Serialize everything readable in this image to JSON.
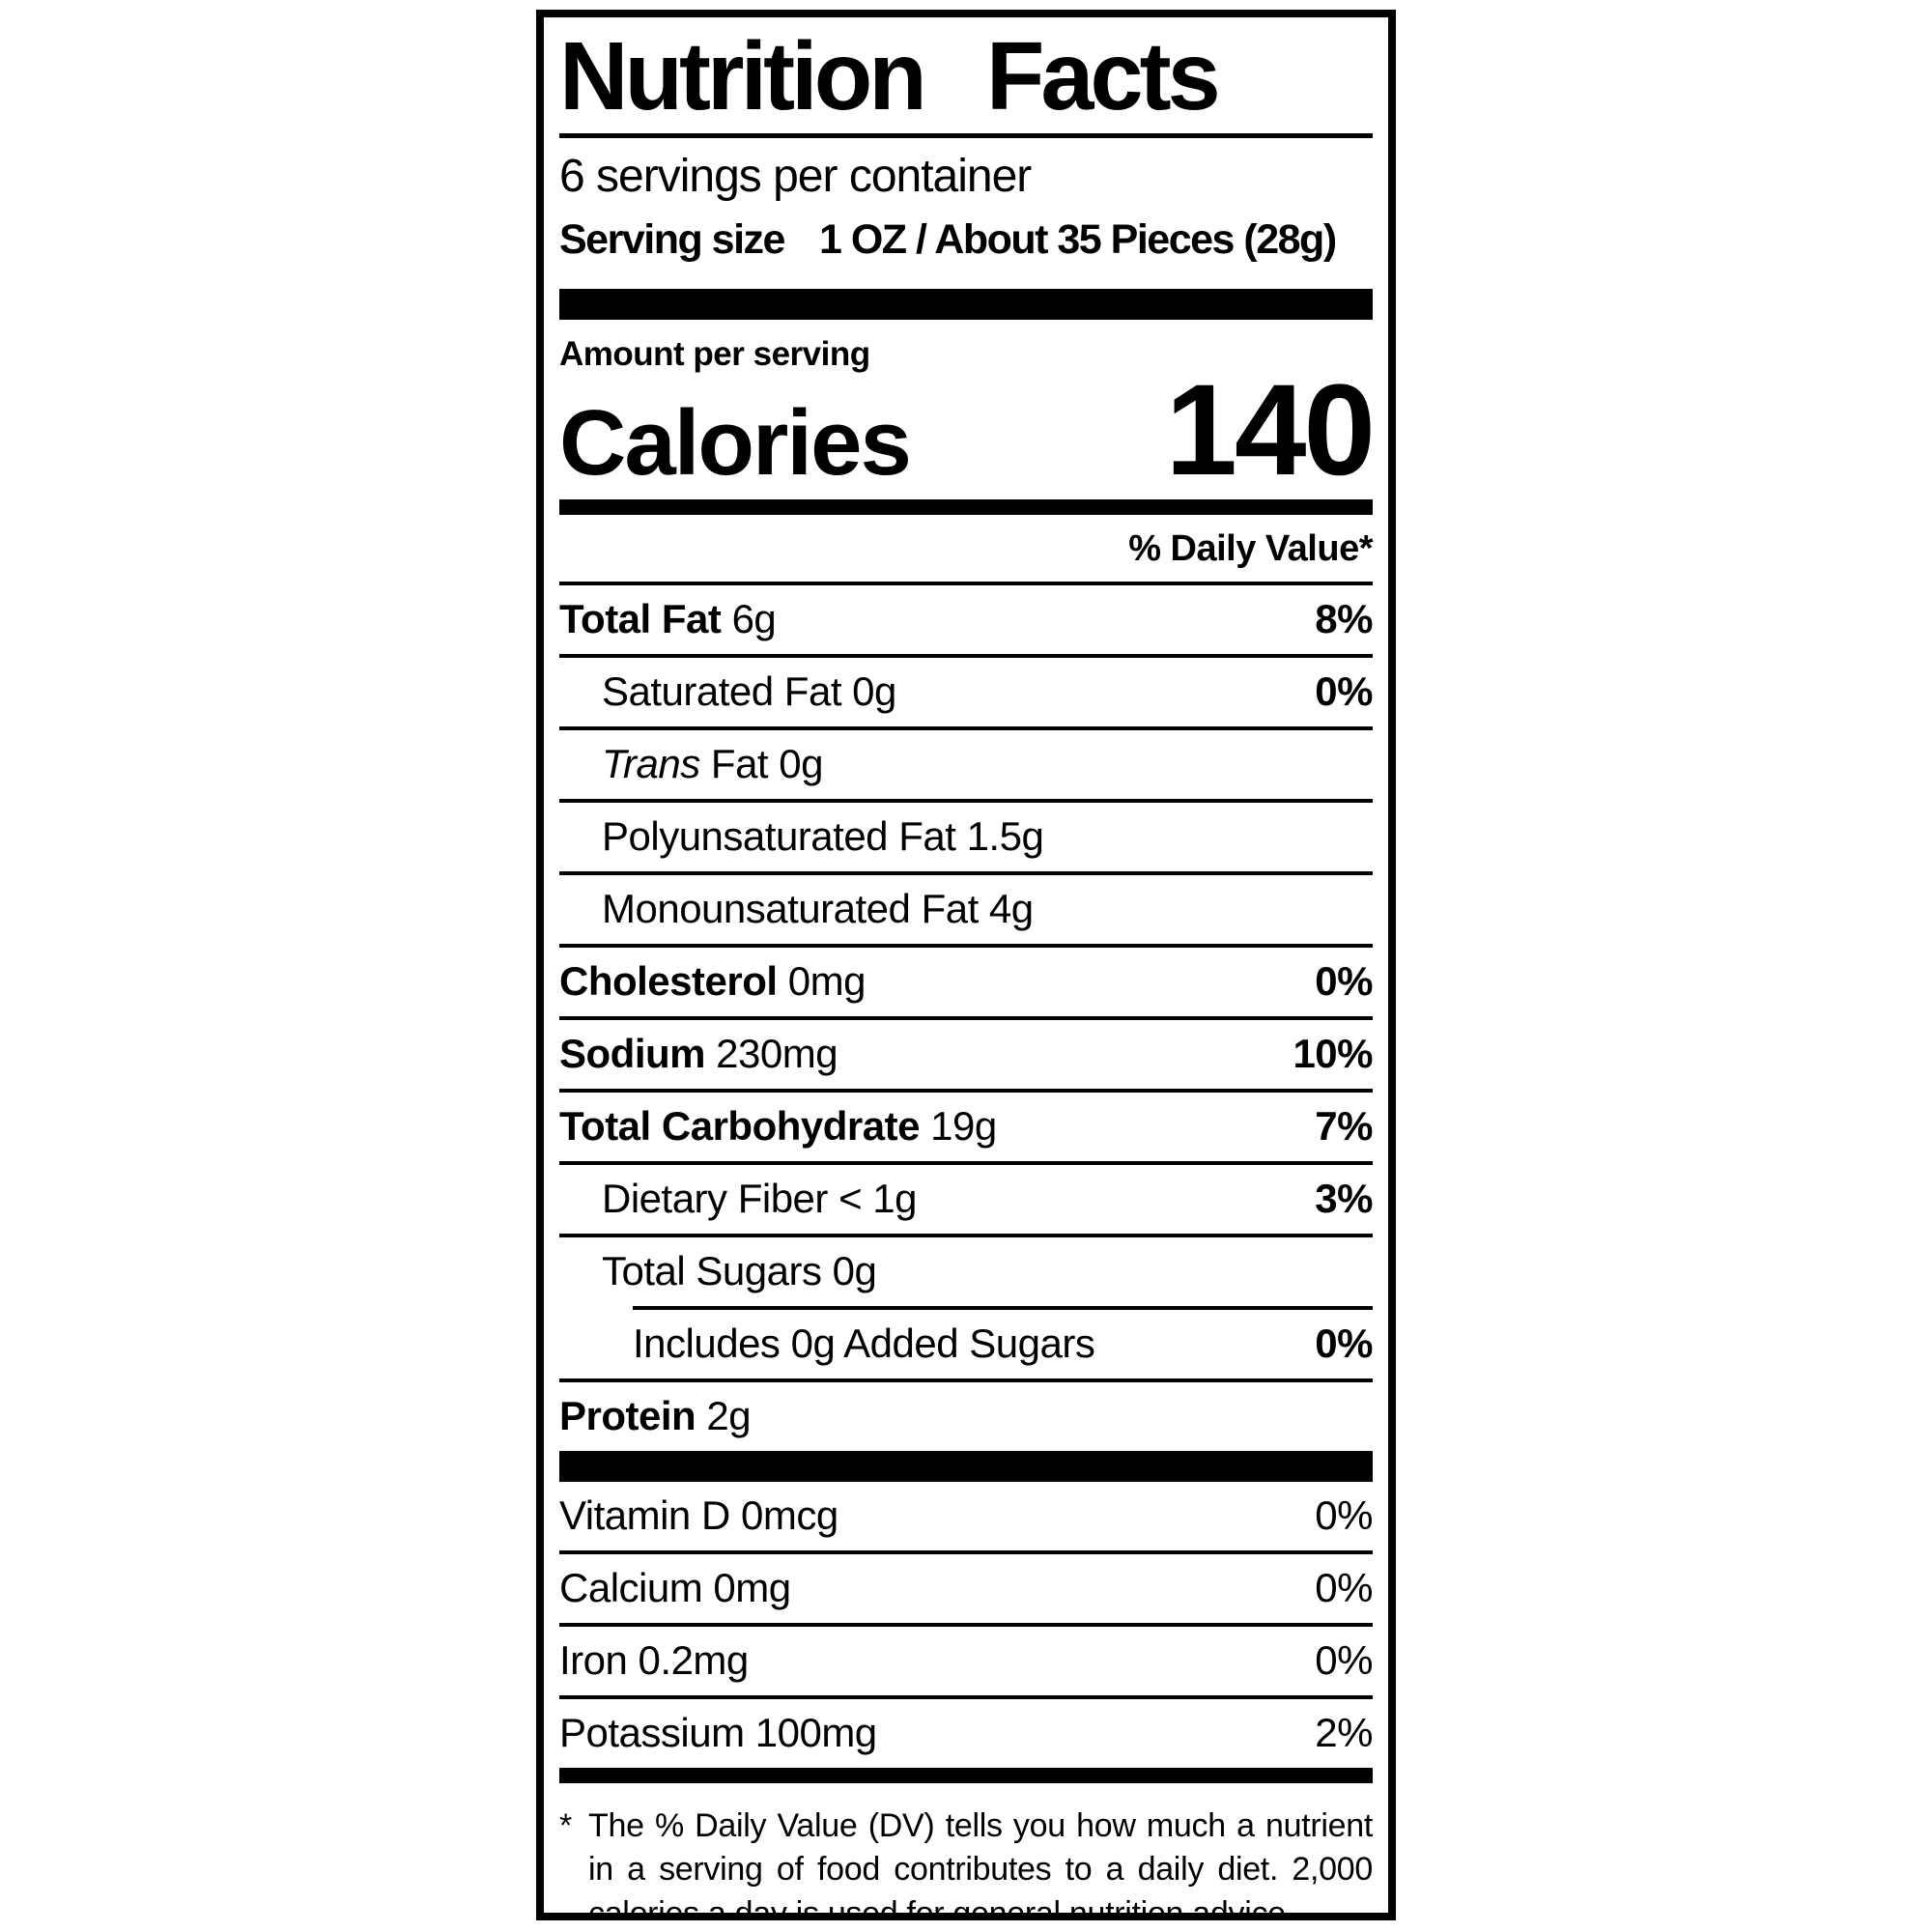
{
  "label": {
    "title": "Nutrition Facts",
    "servings_per_container": "6 servings per container",
    "serving_size_label": "Serving size",
    "serving_size_value": "1 OZ / About 35 Pieces (28g)",
    "amount_per_serving": "Amount per serving",
    "calories_label": "Calories",
    "calories_value": "140",
    "daily_value_header": "% Daily Value*",
    "rows": [
      {
        "name": "Total Fat",
        "amount": "6g",
        "dv": "8%"
      },
      {
        "name": "Saturated Fat",
        "amount": "0g",
        "dv": "0%"
      },
      {
        "name_italic": "Trans",
        "name": "Fat",
        "amount": "0g",
        "dv": ""
      },
      {
        "name": "Polyunsaturated Fat",
        "amount": "1.5g",
        "dv": ""
      },
      {
        "name": "Monounsaturated Fat",
        "amount": "4g",
        "dv": ""
      },
      {
        "name": "Cholesterol",
        "amount": "0mg",
        "dv": "0%"
      },
      {
        "name": "Sodium",
        "amount": "230mg",
        "dv": "10%"
      },
      {
        "name": "Total Carbohydrate",
        "amount": "19g",
        "dv": "7%"
      },
      {
        "name": "Dietary Fiber",
        "amount": "< 1g",
        "dv": "3%"
      },
      {
        "name": "Total Sugars",
        "amount": "0g",
        "dv": ""
      },
      {
        "name": "Includes 0g Added Sugars",
        "amount": "",
        "dv": "0%"
      },
      {
        "name": "Protein",
        "amount": "2g",
        "dv": ""
      }
    ],
    "vitamins": [
      {
        "name": "Vitamin D",
        "amount": "0mcg",
        "dv": "0%"
      },
      {
        "name": "Calcium",
        "amount": "0mg",
        "dv": "0%"
      },
      {
        "name": "Iron",
        "amount": "0.2mg",
        "dv": "0%"
      },
      {
        "name": "Potassium",
        "amount": "100mg",
        "dv": "2%"
      }
    ],
    "footnote_asterisk": "*",
    "footnote": "The % Daily Value (DV) tells you how much a nutrient in a serving of food contributes to a daily diet. 2,000 calories a day is used for general nutrition advice.",
    "colors": {
      "ink": "#000000",
      "background": "#ffffff"
    }
  }
}
